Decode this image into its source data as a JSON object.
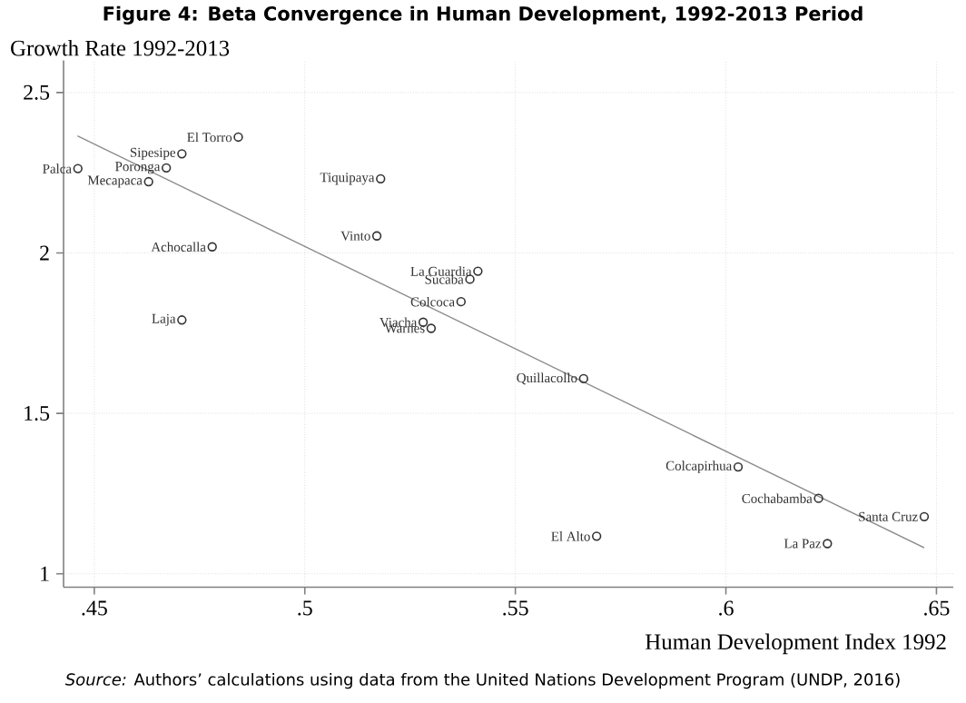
{
  "chart_data": {
    "type": "scatter",
    "title": "Figure 4: Beta Convergence in Human Development, 1992-2013 Period",
    "xlabel": "Human Development Index 1992",
    "ylabel": "Growth Rate 1992-2013",
    "xlim": [
      0.4427,
      0.654
    ],
    "ylim": [
      0.958,
      2.6
    ],
    "xticks": [
      {
        "value": 0.45,
        "label": ".45"
      },
      {
        "value": 0.5,
        "label": ".5"
      },
      {
        "value": 0.55,
        "label": ".55"
      },
      {
        "value": 0.6,
        "label": ".6"
      },
      {
        "value": 0.65,
        "label": ".65"
      }
    ],
    "yticks": [
      1,
      1.5,
      2,
      2.5
    ],
    "grid": true,
    "marker": "circle",
    "series": [
      {
        "color": "#333333",
        "x": [
          0.4461,
          0.4842,
          0.4708,
          0.4671,
          0.4629,
          0.518,
          0.478,
          0.5171,
          0.5411,
          0.5392,
          0.5371,
          0.4708,
          0.5281,
          0.53,
          0.5662,
          0.6029,
          0.622,
          0.6471,
          0.5693,
          0.6241
        ],
        "values": [
          2.263,
          2.361,
          2.309,
          2.265,
          2.222,
          2.231,
          2.019,
          2.053,
          1.943,
          1.918,
          1.848,
          1.791,
          1.784,
          1.765,
          1.608,
          1.333,
          1.235,
          1.178,
          1.117,
          1.094
        ]
      },
      {
        "type": "line",
        "marker": "none",
        "color": "#8c8c8c",
        "x": [
          0.446,
          0.6471
        ],
        "values": [
          2.365,
          1.081
        ]
      }
    ],
    "annotations": [
      "*Source:* Authors’ calculations using data from the United Nations Development Program (UNDP, 2016)",
      {
        "text": "Palca",
        "x": 0.4461,
        "y": 2.263
      },
      {
        "text": "El Torro",
        "x": 0.4842,
        "y": 2.361
      },
      {
        "text": "Sipesipe",
        "x": 0.4708,
        "y": 2.309
      },
      {
        "text": "Poronga",
        "x": 0.4671,
        "y": 2.265
      },
      {
        "text": "Mecapaca",
        "x": 0.4629,
        "y": 2.222
      },
      {
        "text": "Tiquipaya",
        "x": 0.518,
        "y": 2.231
      },
      {
        "text": "Achocalla",
        "x": 0.478,
        "y": 2.019
      },
      {
        "text": "Vinto",
        "x": 0.5171,
        "y": 2.053
      },
      {
        "text": "La Guardia",
        "x": 0.5411,
        "y": 1.943
      },
      {
        "text": "Sucaba",
        "x": 0.5392,
        "y": 1.918
      },
      {
        "text": "Colcoca",
        "x": 0.5371,
        "y": 1.848
      },
      {
        "text": "Laja",
        "x": 0.4708,
        "y": 1.791
      },
      {
        "text": "Viacha",
        "x": 0.5281,
        "y": 1.784
      },
      {
        "text": "Warnes",
        "x": 0.53,
        "y": 1.765
      },
      {
        "text": "Quillacollo",
        "x": 0.5662,
        "y": 1.608
      },
      {
        "text": "Colcapirhua",
        "x": 0.6029,
        "y": 1.333
      },
      {
        "text": "Cochabamba",
        "x": 0.622,
        "y": 1.235
      },
      {
        "text": "Santa Cruz",
        "x": 0.6471,
        "y": 1.178
      },
      {
        "text": "El Alto",
        "x": 0.5693,
        "y": 1.117
      },
      {
        "text": "La Paz",
        "x": 0.6241,
        "y": 1.094
      }
    ]
  }
}
